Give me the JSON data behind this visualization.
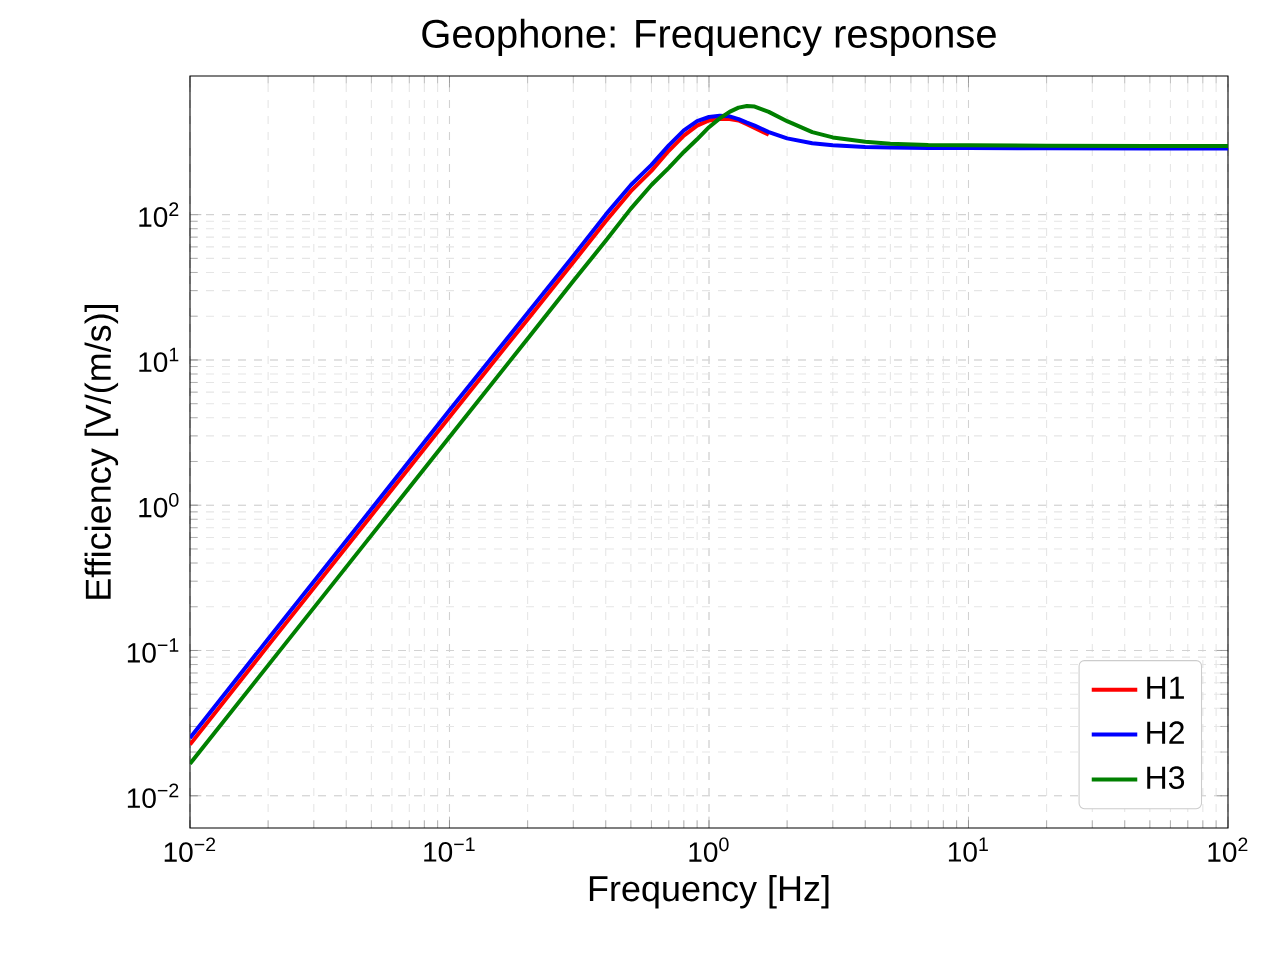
{
  "chart_data": {
    "type": "line",
    "title": "Geophone: Frequency response",
    "xlabel": "Frequency [Hz]",
    "ylabel": "Efficiency [V/(m/s)]",
    "x": [
      0.01,
      0.02,
      0.05,
      0.1,
      0.2,
      0.3,
      0.4,
      0.5,
      0.6,
      0.7,
      0.8,
      0.9,
      1.0,
      1.1,
      1.2,
      1.3,
      1.4,
      1.5,
      1.7,
      2,
      2.5,
      3,
      4,
      5,
      7,
      10,
      20,
      50,
      100
    ],
    "series": [
      {
        "name": "H1",
        "color": "#ff0000",
        "values": [
          0.0225,
          0.108,
          0.85,
          4.05,
          19,
          47,
          90,
          145,
          200,
          275,
          350,
          410,
          445,
          455,
          455,
          445,
          420,
          395,
          355,
          null,
          null,
          null,
          null,
          null,
          null,
          null,
          null,
          null,
          null
        ]
      },
      {
        "name": "H2",
        "color": "#0000ff",
        "values": [
          0.025,
          0.12,
          0.94,
          4.5,
          21,
          52,
          100,
          160,
          220,
          300,
          380,
          440,
          470,
          480,
          475,
          455,
          430,
          410,
          370,
          335,
          310,
          300,
          292,
          290,
          288,
          287,
          286,
          285,
          285
        ]
      },
      {
        "name": "H3",
        "color": "#008000",
        "values": [
          0.0166,
          0.079,
          0.62,
          2.95,
          14,
          35,
          66,
          110,
          160,
          210,
          270,
          330,
          400,
          460,
          510,
          545,
          560,
          555,
          510,
          440,
          370,
          340,
          318,
          308,
          302,
          300,
          298,
          297,
          297
        ]
      }
    ],
    "log": "xy",
    "xlim": [
      0.01,
      100
    ],
    "ylim": [
      0.006,
      900
    ],
    "xticks": [
      {
        "value": 0.01,
        "label": "10$^{−2}$"
      },
      {
        "value": 0.1,
        "label": "10$^{−1}$"
      },
      {
        "value": 1,
        "label": "10$^{0}$"
      },
      {
        "value": 10,
        "label": "10$^{1}$"
      },
      {
        "value": 100,
        "label": "10$^{2}$"
      }
    ],
    "yticks": [
      {
        "value": 0.01,
        "label": "10$^{−2}$"
      },
      {
        "value": 0.1,
        "label": "10$^{−1}$"
      },
      {
        "value": 1,
        "label": "10$^{0}$"
      },
      {
        "value": 10,
        "label": "10$^{1}$"
      },
      {
        "value": 100,
        "label": "10$^{2}$"
      }
    ],
    "grid": true,
    "legend": "bottom right",
    "marker": "none",
    "line_style": "solid"
  }
}
